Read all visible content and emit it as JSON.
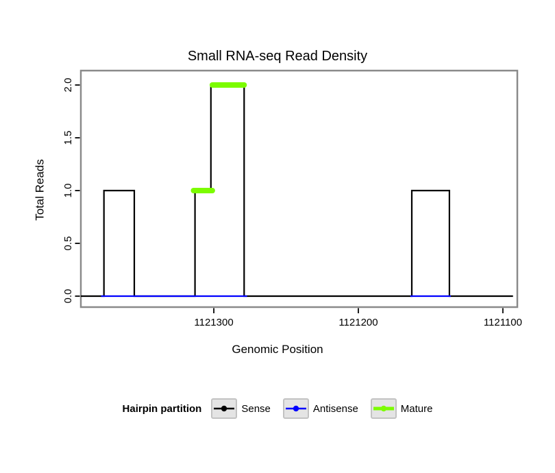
{
  "chart_data": {
    "type": "line",
    "title": "Small RNA-seq Read Density",
    "xlabel": "Genomic Position",
    "ylabel": "Total Reads",
    "x_axis_reversed": true,
    "x_domain": [
      1121392,
      1121090
    ],
    "y_domain": [
      0,
      2
    ],
    "x_ticks": [
      {
        "value": 1121300,
        "label": "1121300"
      },
      {
        "value": 1121200,
        "label": "1121200"
      },
      {
        "value": 1121100,
        "label": "1121100"
      }
    ],
    "y_ticks": [
      {
        "value": 0,
        "label": "0.0"
      },
      {
        "value": 0.5,
        "label": "0.5"
      },
      {
        "value": 1,
        "label": "1.0"
      },
      {
        "value": 1.5,
        "label": "1.5"
      },
      {
        "value": 2,
        "label": "2.0"
      }
    ],
    "series": [
      {
        "name": "Sense",
        "color": "#000000",
        "width": 2.2,
        "points": [
          [
            1121392,
            0
          ],
          [
            1121376,
            0
          ],
          [
            1121376,
            1
          ],
          [
            1121355,
            1
          ],
          [
            1121355,
            0
          ],
          [
            1121313,
            0
          ],
          [
            1121313,
            1
          ],
          [
            1121302,
            1
          ],
          [
            1121302,
            2
          ],
          [
            1121279,
            2
          ],
          [
            1121279,
            0
          ],
          [
            1121163,
            0
          ],
          [
            1121163,
            1
          ],
          [
            1121137,
            1
          ],
          [
            1121137,
            0
          ],
          [
            1121093,
            0
          ]
        ]
      },
      {
        "name": "Antisense",
        "color": "#0000ff",
        "width": 2.2,
        "segments": [
          [
            [
              1121378,
              0
            ],
            [
              1121277,
              0
            ]
          ],
          [
            [
              1121164,
              0
            ],
            [
              1121136,
              0
            ]
          ]
        ]
      },
      {
        "name": "Mature",
        "color": "#7cfc00",
        "width": 8,
        "segments": [
          [
            [
              1121314,
              1
            ],
            [
              1121301,
              1
            ]
          ],
          [
            [
              1121301,
              2
            ],
            [
              1121279,
              2
            ]
          ]
        ]
      }
    ],
    "legend": {
      "title": "Hairpin partition",
      "entries": [
        "Sense",
        "Antisense",
        "Mature"
      ]
    },
    "panel_border_color": "#8a8a8a",
    "grid": false,
    "legend_position": "bottom"
  }
}
